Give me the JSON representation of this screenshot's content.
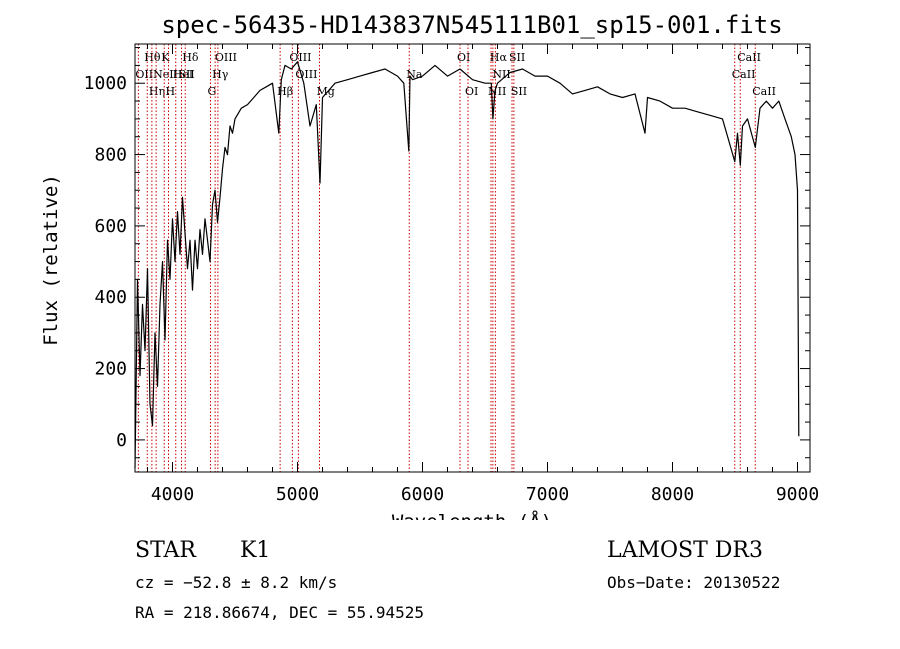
{
  "chart_data": {
    "type": "line",
    "title": "spec-56435-HD143837N545111B01_sp15-001.fits",
    "xlabel": "Wavelength (Å)",
    "ylabel": "Flux (relative)",
    "xlim": [
      3700,
      9100
    ],
    "ylim": [
      -90,
      1110
    ],
    "x_ticks": [
      4000,
      5000,
      6000,
      7000,
      8000,
      9000
    ],
    "y_ticks": [
      0,
      200,
      400,
      600,
      800,
      1000
    ],
    "grid": false,
    "line_color": "#000000",
    "marker_color": "#cc0000",
    "series": [
      {
        "x": [
          3700,
          3720,
          3740,
          3760,
          3780,
          3800,
          3820,
          3840,
          3860,
          3880,
          3900,
          3920,
          3940,
          3960,
          3980,
          4000,
          4020,
          4040,
          4060,
          4080,
          4100,
          4120,
          4140,
          4160,
          4180,
          4200,
          4220,
          4240,
          4260,
          4280,
          4300,
          4320,
          4340,
          4360,
          4380,
          4400,
          4420,
          4440,
          4460,
          4480,
          4500,
          4550,
          4600,
          4650,
          4700,
          4750,
          4800,
          4850,
          4870,
          4900,
          4950,
          5000,
          5050,
          5100,
          5150,
          5180,
          5200,
          5250,
          5300,
          5400,
          5500,
          5600,
          5700,
          5800,
          5850,
          5890,
          5900,
          5920,
          6000,
          6100,
          6200,
          6300,
          6400,
          6500,
          6550,
          6563,
          6580,
          6600,
          6700,
          6800,
          6900,
          7000,
          7100,
          7200,
          7300,
          7400,
          7500,
          7600,
          7700,
          7780,
          7800,
          7900,
          8000,
          8100,
          8200,
          8300,
          8400,
          8498,
          8520,
          8542,
          8560,
          8600,
          8662,
          8700,
          8750,
          8800,
          8850,
          8900,
          8950,
          8980,
          9000,
          9010
        ],
        "values": [
          -80,
          450,
          180,
          380,
          250,
          480,
          100,
          40,
          300,
          150,
          380,
          500,
          280,
          560,
          450,
          620,
          500,
          640,
          520,
          680,
          580,
          480,
          560,
          420,
          560,
          480,
          590,
          520,
          620,
          560,
          500,
          660,
          700,
          610,
          680,
          760,
          820,
          800,
          880,
          860,
          900,
          930,
          940,
          960,
          980,
          990,
          1000,
          860,
          1010,
          1050,
          1040,
          1060,
          1000,
          880,
          940,
          720,
          960,
          980,
          1000,
          1010,
          1020,
          1030,
          1040,
          1020,
          1000,
          810,
          1020,
          1010,
          1020,
          1050,
          1020,
          1040,
          1010,
          1000,
          1000,
          900,
          980,
          1000,
          1030,
          1040,
          1020,
          1020,
          1000,
          970,
          980,
          990,
          970,
          960,
          970,
          860,
          960,
          950,
          930,
          930,
          920,
          910,
          900,
          780,
          860,
          770,
          880,
          900,
          820,
          930,
          950,
          930,
          950,
          900,
          850,
          800,
          700,
          10
        ]
      }
    ],
    "line_markers": [
      {
        "x": 3727,
        "label": "OII",
        "row": 2
      },
      {
        "x": 3798,
        "label": "Hθ",
        "row": 1
      },
      {
        "x": 3835,
        "label": "Hη",
        "row": 3
      },
      {
        "x": 3869,
        "label": "NeIII",
        "row": 2
      },
      {
        "x": 3934,
        "label": "K",
        "row": 1
      },
      {
        "x": 3968,
        "label": "H",
        "row": 3
      },
      {
        "x": 4026,
        "label": "HeI",
        "row": 2
      },
      {
        "x": 4072,
        "label": "SII",
        "row": 2
      },
      {
        "x": 4102,
        "label": "Hδ",
        "row": 1
      },
      {
        "x": 4304,
        "label": "G",
        "row": 3
      },
      {
        "x": 4341,
        "label": "Hγ",
        "row": 2
      },
      {
        "x": 4363,
        "label": "OIII",
        "row": 1
      },
      {
        "x": 4861,
        "label": "Hβ",
        "row": 3
      },
      {
        "x": 4959,
        "label": "OIII",
        "row": 1
      },
      {
        "x": 5007,
        "label": "OIII",
        "row": 2
      },
      {
        "x": 5176,
        "label": "Mg",
        "row": 3
      },
      {
        "x": 5894,
        "label": "Na",
        "row": 2
      },
      {
        "x": 6300,
        "label": "OI",
        "row": 1
      },
      {
        "x": 6364,
        "label": "OI",
        "row": 3
      },
      {
        "x": 6548,
        "label": "NII",
        "row": 3
      },
      {
        "x": 6563,
        "label": "Hα",
        "row": 1
      },
      {
        "x": 6583,
        "label": "NII",
        "row": 2
      },
      {
        "x": 6716,
        "label": "SII",
        "row": 1
      },
      {
        "x": 6731,
        "label": "SII",
        "row": 3
      },
      {
        "x": 8498,
        "label": "CaII",
        "row": 2
      },
      {
        "x": 8542,
        "label": "CaII",
        "row": 1
      },
      {
        "x": 8662,
        "label": "CaII",
        "row": 3
      }
    ]
  },
  "info": {
    "class_label": "STAR",
    "subclass": "K1",
    "survey": "LAMOST DR3",
    "cz": "cz = −52.8 ± 8.2 km/s",
    "obs_date": "Obs−Date: 20130522",
    "coords": "RA = 218.86674, DEC =  55.94525"
  }
}
